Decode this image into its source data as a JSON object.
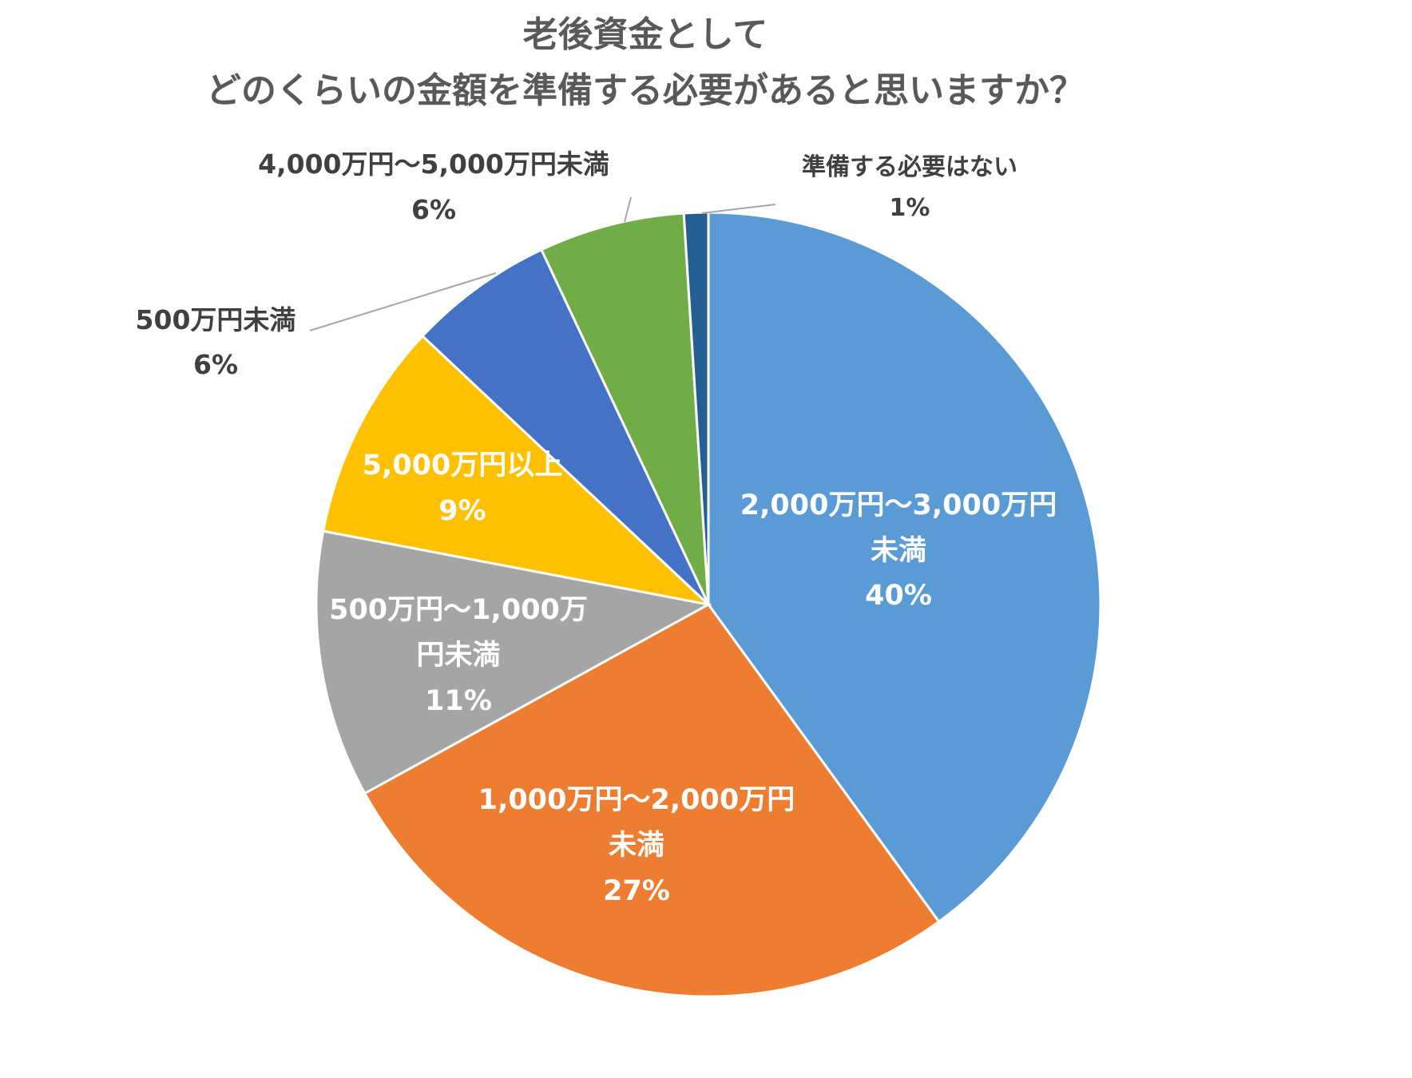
{
  "chart_data": {
    "type": "pie",
    "title": [
      "老後資金として",
      "どのくらいの金額を準備する必要があると思いますか？"
    ],
    "start": "12 o'clock, clockwise",
    "slices": [
      {
        "label_lines": [
          "2,000万円～3,000万円",
          "未満"
        ],
        "value": 40,
        "pct": "40%",
        "color": "#5B9BD5"
      },
      {
        "label_lines": [
          "1,000万円～2,000万円",
          "未満"
        ],
        "value": 27,
        "pct": "27%",
        "color": "#ED7D31"
      },
      {
        "label_lines": [
          "500万円～1,000万",
          "円未満"
        ],
        "value": 11,
        "pct": "11%",
        "color": "#A5A5A5"
      },
      {
        "label_lines": [
          "5,000万円以上"
        ],
        "value": 9,
        "pct": "9%",
        "color": "#FFC000"
      },
      {
        "label_lines": [
          "500万円未満"
        ],
        "value": 6,
        "pct": "6%",
        "color": "#4472C4"
      },
      {
        "label_lines": [
          "4,000万円～5,000万円未満"
        ],
        "value": 6,
        "pct": "6%",
        "color": "#70AD47"
      },
      {
        "label_lines": [
          "準備する必要はない"
        ],
        "value": 1,
        "pct": "1%",
        "color": "#255E91"
      }
    ]
  }
}
